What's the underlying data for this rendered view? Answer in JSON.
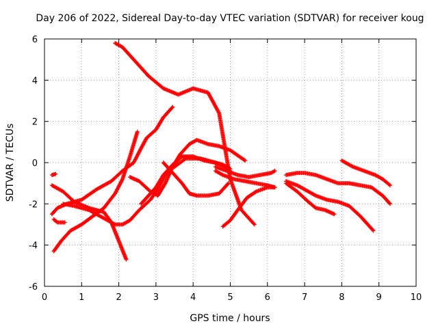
{
  "chart_data": {
    "type": "scatter",
    "title": "Day 206 of 2022, Sidereal Day-to-day VTEC variation (SDTVAR) for receiver koug",
    "xlabel": "GPS time / hours",
    "ylabel": "SDTVAR / TECUs",
    "xlim": [
      0,
      10
    ],
    "ylim": [
      -6,
      6
    ],
    "xticks": [
      0,
      1,
      2,
      3,
      4,
      5,
      6,
      7,
      8,
      9,
      10
    ],
    "yticks": [
      -6,
      -4,
      -2,
      0,
      2,
      4,
      6
    ],
    "grid": true,
    "marker": "plus",
    "color": "#ff0000",
    "series": [
      {
        "x": [
          1.9,
          2.1,
          2.4,
          2.8,
          3.2,
          3.6,
          4.0,
          4.4,
          4.7,
          4.85,
          5.0,
          5.3,
          5.65
        ],
        "y": [
          5.8,
          5.6,
          5.0,
          4.2,
          3.6,
          3.3,
          3.6,
          3.4,
          2.4,
          0.8,
          -0.8,
          -2.3,
          -3.0
        ]
      },
      {
        "x": [
          0.25,
          0.45,
          0.7,
          1.0,
          1.3,
          1.6,
          1.9,
          2.1,
          2.3,
          2.5
        ],
        "y": [
          -4.3,
          -3.8,
          -3.3,
          -3.0,
          -2.6,
          -2.2,
          -1.5,
          -0.8,
          0.3,
          1.5
        ]
      },
      {
        "x": [
          0.2,
          0.5,
          0.8,
          1.2,
          1.6,
          1.8,
          2.0,
          2.2
        ],
        "y": [
          -1.1,
          -1.4,
          -1.9,
          -2.2,
          -2.4,
          -2.9,
          -3.8,
          -4.7
        ]
      },
      {
        "x": [
          0.2,
          0.35,
          0.6,
          1.0,
          1.4,
          1.8,
          2.1,
          2.4,
          2.6,
          2.75,
          3.0,
          3.2,
          3.45
        ],
        "y": [
          -2.5,
          -2.2,
          -2.0,
          -1.8,
          -1.3,
          -0.9,
          -0.4,
          0.0,
          0.7,
          1.2,
          1.6,
          2.2,
          2.7
        ]
      },
      {
        "x": [
          0.25,
          0.35,
          0.55
        ],
        "y": [
          -2.75,
          -2.9,
          -2.9
        ]
      },
      {
        "x": [
          0.2,
          0.3
        ],
        "y": [
          -0.6,
          -0.55
        ]
      },
      {
        "x": [
          0.5,
          0.8,
          1.2,
          1.6,
          1.9,
          2.1,
          2.3,
          2.55,
          2.85,
          3.05,
          3.25,
          3.4,
          3.5,
          3.8,
          4.2,
          4.6,
          4.8,
          5.0
        ],
        "y": [
          -2.0,
          -2.1,
          -2.3,
          -2.7,
          -3.0,
          -3.0,
          -2.8,
          -2.3,
          -1.8,
          -1.3,
          -0.6,
          -0.3,
          -0.2,
          0.2,
          0.2,
          0.0,
          -0.1,
          -0.3
        ]
      },
      {
        "x": [
          2.3,
          2.55,
          2.85,
          3.05,
          3.25,
          3.45,
          3.65,
          3.9,
          4.1,
          4.4,
          4.7,
          5.0,
          5.4
        ],
        "y": [
          -0.7,
          -0.9,
          -1.4,
          -1.6,
          -1.0,
          -0.2,
          0.4,
          0.9,
          1.1,
          0.9,
          0.8,
          0.6,
          0.1
        ]
      },
      {
        "x": [
          2.6,
          2.8,
          3.0,
          3.2,
          3.45,
          3.7,
          4.0,
          4.3,
          4.6,
          4.85,
          5.0
        ],
        "y": [
          -2.0,
          -1.6,
          -1.2,
          -0.6,
          -0.1,
          0.3,
          0.3,
          0.1,
          0.0,
          -0.2,
          -0.4
        ]
      },
      {
        "x": [
          3.2,
          3.45,
          3.7,
          3.9,
          4.1,
          4.4,
          4.7,
          4.85,
          4.95
        ],
        "y": [
          0.0,
          -0.5,
          -1.0,
          -1.5,
          -1.6,
          -1.6,
          -1.5,
          -1.2,
          -1.0
        ]
      },
      {
        "x": [
          4.6,
          4.9,
          5.2,
          5.5,
          5.8,
          6.1,
          6.2
        ],
        "y": [
          -0.2,
          -0.4,
          -0.6,
          -0.7,
          -0.6,
          -0.5,
          -0.4
        ]
      },
      {
        "x": [
          4.6,
          4.8,
          5.1,
          5.4,
          5.7,
          6.0,
          6.2
        ],
        "y": [
          -0.4,
          -0.6,
          -0.8,
          -0.9,
          -1.0,
          -1.1,
          -1.2
        ]
      },
      {
        "x": [
          4.8,
          5.0,
          5.2,
          5.45,
          5.7,
          6.0,
          6.2
        ],
        "y": [
          -3.1,
          -2.8,
          -2.3,
          -1.7,
          -1.4,
          -1.2,
          -1.2
        ]
      },
      {
        "x": [
          6.5,
          6.8,
          7.0,
          7.3,
          7.6,
          7.9,
          8.2,
          8.5,
          8.7,
          8.85
        ],
        "y": [
          -0.9,
          -1.1,
          -1.3,
          -1.6,
          -1.8,
          -1.9,
          -2.1,
          -2.6,
          -3.0,
          -3.3
        ]
      },
      {
        "x": [
          6.5,
          6.8,
          7.1,
          7.3,
          7.55,
          7.8
        ],
        "y": [
          -1.0,
          -1.4,
          -1.9,
          -2.2,
          -2.3,
          -2.5
        ]
      },
      {
        "x": [
          6.5,
          6.8,
          7.0,
          7.3,
          7.6,
          7.9,
          8.2,
          8.5,
          8.8,
          9.1,
          9.3
        ],
        "y": [
          -0.6,
          -0.5,
          -0.5,
          -0.6,
          -0.8,
          -1.0,
          -1.0,
          -1.1,
          -1.2,
          -1.6,
          -2.0
        ]
      },
      {
        "x": [
          8.0,
          8.3,
          8.6,
          8.9,
          9.1,
          9.3
        ],
        "y": [
          0.1,
          -0.2,
          -0.4,
          -0.6,
          -0.8,
          -1.1
        ]
      }
    ]
  }
}
